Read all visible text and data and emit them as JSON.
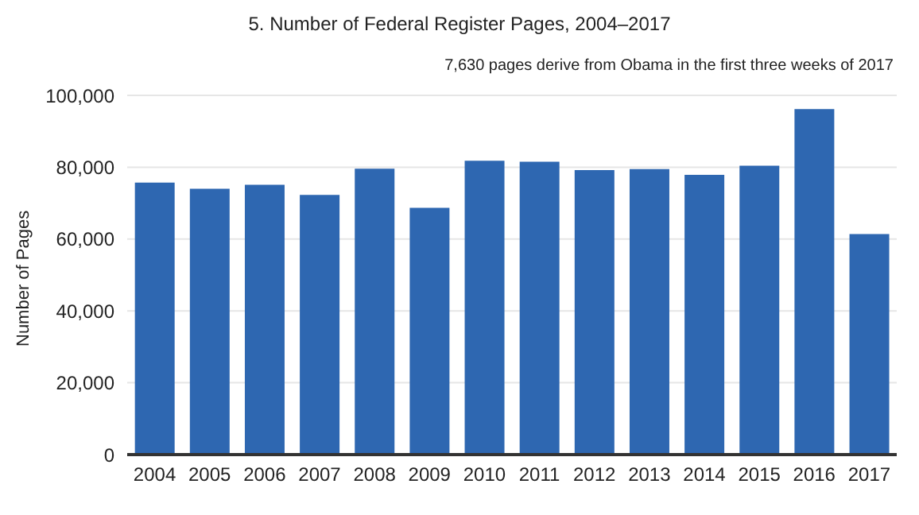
{
  "chart_data": {
    "type": "bar",
    "title": "5. Number of Federal Register Pages, 2004–2017",
    "ylabel": "Number of Pages",
    "annotations": [
      "7,630 pages derive from Obama in the first three weeks of 2017"
    ],
    "categories": [
      "2004",
      "2005",
      "2006",
      "2007",
      "2008",
      "2009",
      "2010",
      "2011",
      "2012",
      "2013",
      "2014",
      "2015",
      "2016",
      "2017"
    ],
    "values": [
      75700,
      74000,
      75100,
      72300,
      79600,
      68700,
      81800,
      81500,
      79200,
      79500,
      77900,
      80400,
      96200,
      61400
    ],
    "color": "#2e67b1",
    "ylim": [
      0,
      100000
    ],
    "yticks": [
      {
        "value": 0,
        "label": "0"
      },
      {
        "value": 20000,
        "label": "20,000"
      },
      {
        "value": 40000,
        "label": "40,000"
      },
      {
        "value": 60000,
        "label": "60,000"
      },
      {
        "value": 80000,
        "label": "80,000"
      },
      {
        "value": 100000,
        "label": "100,000"
      }
    ],
    "grid": "y"
  }
}
